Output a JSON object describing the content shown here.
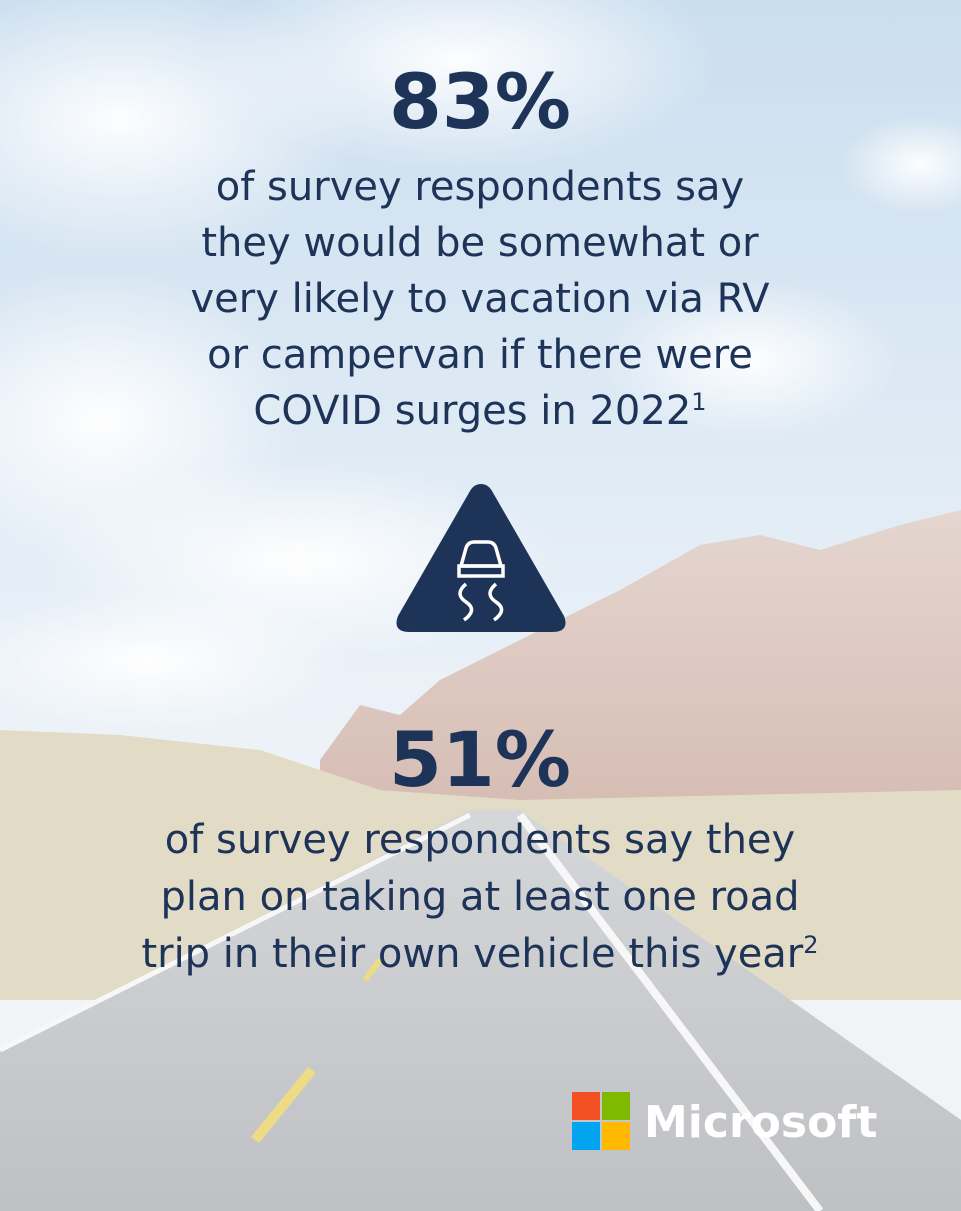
{
  "stats": [
    {
      "value": "83%",
      "lines": [
        "of survey respondents say",
        "they would be somewhat or",
        "very likely to vacation via RV",
        "or campervan if there were",
        "COVID surges in 2022"
      ],
      "footnote": "1"
    },
    {
      "value": "51%",
      "lines": [
        "of survey respondents say they",
        "plan on taking at least one road",
        "trip in their own vehicle this year"
      ],
      "footnote": "2"
    }
  ],
  "brand": "Microsoft"
}
